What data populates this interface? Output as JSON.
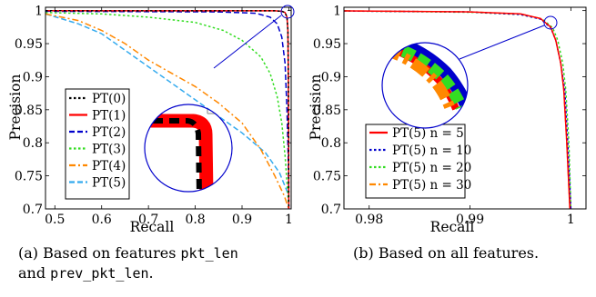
{
  "chart_data": [
    {
      "type": "line",
      "xlabel": "Recall",
      "ylabel": "Precision",
      "xlim": [
        0.48,
        1.005
      ],
      "ylim": [
        0.7,
        1.005
      ],
      "xticks": [
        "0.5",
        "0.6",
        "0.7",
        "0.8",
        "0.9",
        "1"
      ],
      "yticks": [
        "0.7",
        "0.75",
        "0.8",
        "0.85",
        "0.9",
        "0.95",
        "1"
      ],
      "legend_position": "bottom-left",
      "grid": false,
      "series": [
        {
          "name": "PT(0)",
          "color": "#000000",
          "style": "dotted",
          "points": [
            [
              0.48,
              0.9998
            ],
            [
              0.9,
              0.9997
            ],
            [
              0.97,
              0.9996
            ],
            [
              0.985,
              0.999
            ],
            [
              0.992,
              0.997
            ],
            [
              0.996,
              0.99
            ],
            [
              0.998,
              0.97
            ],
            [
              0.999,
              0.9
            ],
            [
              0.9995,
              0.8
            ],
            [
              1.0,
              0.7
            ]
          ]
        },
        {
          "name": "PT(1)",
          "color": "#ff0000",
          "style": "solid",
          "points": [
            [
              0.48,
              0.9998
            ],
            [
              0.9,
              0.9997
            ],
            [
              0.97,
              0.9996
            ],
            [
              0.985,
              0.999
            ],
            [
              0.992,
              0.997
            ],
            [
              0.996,
              0.99
            ],
            [
              0.998,
              0.97
            ],
            [
              0.999,
              0.9
            ],
            [
              0.9995,
              0.8
            ],
            [
              1.0,
              0.7
            ]
          ]
        },
        {
          "name": "PT(2)",
          "color": "#0000cc",
          "style": "dashed",
          "points": [
            [
              0.48,
              0.999
            ],
            [
              0.85,
              0.998
            ],
            [
              0.93,
              0.996
            ],
            [
              0.96,
              0.99
            ],
            [
              0.975,
              0.98
            ],
            [
              0.985,
              0.96
            ],
            [
              0.992,
              0.92
            ],
            [
              0.996,
              0.85
            ],
            [
              0.999,
              0.77
            ],
            [
              1.0,
              0.7
            ]
          ]
        },
        {
          "name": "PT(3)",
          "color": "#33dd22",
          "style": "dotted",
          "points": [
            [
              0.48,
              0.997
            ],
            [
              0.6,
              0.995
            ],
            [
              0.7,
              0.99
            ],
            [
              0.8,
              0.982
            ],
            [
              0.86,
              0.97
            ],
            [
              0.9,
              0.955
            ],
            [
              0.94,
              0.93
            ],
            [
              0.96,
              0.905
            ],
            [
              0.975,
              0.87
            ],
            [
              0.985,
              0.83
            ],
            [
              0.992,
              0.78
            ],
            [
              0.997,
              0.73
            ],
            [
              1.0,
              0.7
            ]
          ]
        },
        {
          "name": "PT(4)",
          "color": "#ff8800",
          "style": "dashdot",
          "points": [
            [
              0.48,
              0.995
            ],
            [
              0.55,
              0.985
            ],
            [
              0.6,
              0.97
            ],
            [
              0.65,
              0.95
            ],
            [
              0.7,
              0.925
            ],
            [
              0.75,
              0.905
            ],
            [
              0.8,
              0.885
            ],
            [
              0.85,
              0.86
            ],
            [
              0.9,
              0.83
            ],
            [
              0.94,
              0.79
            ],
            [
              0.97,
              0.75
            ],
            [
              0.99,
              0.72
            ],
            [
              1.0,
              0.7
            ]
          ]
        },
        {
          "name": "PT(5)",
          "color": "#33aaee",
          "style": "dashed",
          "points": [
            [
              0.48,
              0.995
            ],
            [
              0.55,
              0.98
            ],
            [
              0.6,
              0.965
            ],
            [
              0.65,
              0.94
            ],
            [
              0.7,
              0.915
            ],
            [
              0.75,
              0.89
            ],
            [
              0.8,
              0.865
            ],
            [
              0.85,
              0.84
            ],
            [
              0.9,
              0.815
            ],
            [
              0.95,
              0.785
            ],
            [
              0.98,
              0.755
            ],
            [
              1.0,
              0.72
            ]
          ]
        }
      ]
    },
    {
      "type": "line",
      "xlabel": "Recall",
      "ylabel": "Precision",
      "xlim": [
        0.9775,
        1.0015
      ],
      "ylim": [
        0.7,
        1.005
      ],
      "xticks": [
        "0.98",
        "0.99",
        "1"
      ],
      "yticks": [
        "0.7",
        "0.75",
        "0.8",
        "0.85",
        "0.9",
        "0.95",
        "1"
      ],
      "legend_position": "bottom-left",
      "grid": false,
      "series": [
        {
          "name": "PT(5) n = 5",
          "color": "#ff0000",
          "style": "solid",
          "points": [
            [
              0.9775,
              0.9995
            ],
            [
              0.99,
              0.998
            ],
            [
              0.995,
              0.995
            ],
            [
              0.997,
              0.988
            ],
            [
              0.998,
              0.975
            ],
            [
              0.9985,
              0.955
            ],
            [
              0.999,
              0.92
            ],
            [
              0.9993,
              0.88
            ],
            [
              0.9996,
              0.8
            ],
            [
              0.9999,
              0.7
            ]
          ]
        },
        {
          "name": "PT(5) n = 10",
          "color": "#0000cc",
          "style": "dotted",
          "points": [
            [
              0.9775,
              0.9993
            ],
            [
              0.99,
              0.998
            ],
            [
              0.995,
              0.994
            ],
            [
              0.997,
              0.987
            ],
            [
              0.998,
              0.974
            ],
            [
              0.9985,
              0.955
            ],
            [
              0.999,
              0.92
            ],
            [
              0.9994,
              0.88
            ],
            [
              0.9997,
              0.8
            ],
            [
              1.0,
              0.7
            ]
          ]
        },
        {
          "name": "PT(5) n = 20",
          "color": "#33dd22",
          "style": "dotted",
          "points": [
            [
              0.9775,
              0.9993
            ],
            [
              0.99,
              0.9975
            ],
            [
              0.995,
              0.994
            ],
            [
              0.9972,
              0.987
            ],
            [
              0.9982,
              0.974
            ],
            [
              0.9987,
              0.955
            ],
            [
              0.9992,
              0.92
            ],
            [
              0.9995,
              0.88
            ],
            [
              0.9998,
              0.8
            ],
            [
              1.0,
              0.7
            ]
          ]
        },
        {
          "name": "PT(5) n = 30",
          "color": "#ff8800",
          "style": "dashdot",
          "points": [
            [
              0.9775,
              0.9995
            ],
            [
              0.99,
              0.998
            ],
            [
              0.995,
              0.995
            ],
            [
              0.997,
              0.988
            ],
            [
              0.998,
              0.975
            ],
            [
              0.9985,
              0.955
            ],
            [
              0.999,
              0.92
            ],
            [
              0.9993,
              0.88
            ],
            [
              0.9996,
              0.8
            ],
            [
              0.9999,
              0.7
            ]
          ]
        }
      ]
    }
  ],
  "captions": {
    "a": {
      "prefix": "(a) Based on features ",
      "code1": "pkt_len",
      "and": "and ",
      "code2": "prev_pkt_len",
      "suffix": "."
    },
    "b": {
      "text": "(b) Based on all features."
    }
  },
  "colors": {
    "inset_circle": "#0000cc",
    "zoom_line": "#0000cc",
    "gray_box": "#aaaaaa"
  }
}
